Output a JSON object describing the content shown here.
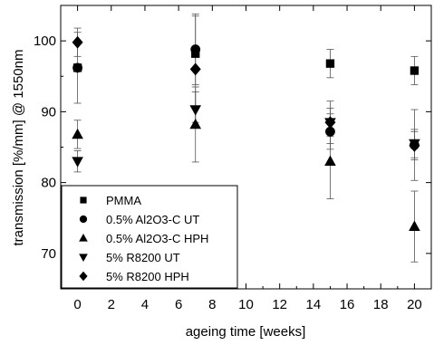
{
  "chart_data": {
    "type": "scatter",
    "xlabel": "ageing time [weeks]",
    "ylabel": "transmission [%/mm] @ 1550nm",
    "xlim": [
      -1,
      21
    ],
    "ylim": [
      65,
      105
    ],
    "xticks": [
      0,
      2,
      4,
      6,
      8,
      10,
      12,
      14,
      16,
      18,
      20
    ],
    "yticks": [
      70,
      80,
      90,
      100
    ],
    "legend_position": "bottom-left",
    "series": [
      {
        "name": "PMMA",
        "marker": "square",
        "color": "#000000",
        "x": [
          0,
          7,
          15,
          20
        ],
        "y": [
          96.2,
          98.2,
          96.8,
          95.8
        ],
        "error": [
          null,
          null,
          2.0,
          2.0
        ]
      },
      {
        "name": "0.5% Al2O3-C UT",
        "marker": "circle",
        "color": "#000000",
        "x": [
          0,
          7,
          15,
          20
        ],
        "y": [
          96.2,
          98.8,
          87.2,
          85.3
        ],
        "error": [
          5.0,
          5.0,
          2.5,
          5.0
        ]
      },
      {
        "name": "0.5% Al2O3-C HPH",
        "marker": "triangle-up",
        "color": "#000000",
        "x": [
          0,
          7,
          15,
          20
        ],
        "y": [
          86.8,
          88.2,
          83.0,
          73.8
        ],
        "error": [
          2.0,
          5.3,
          5.3,
          5.0
        ]
      },
      {
        "name": "5% R8200 UT",
        "marker": "triangle-down",
        "color": "#000000",
        "x": [
          0,
          7,
          15,
          20
        ],
        "y": [
          83.0,
          90.3,
          88.5,
          85.5
        ],
        "error": [
          1.5,
          2.5,
          2.0,
          2.0
        ]
      },
      {
        "name": "5% R8200 HPH",
        "marker": "diamond",
        "color": "#000000",
        "x": [
          0,
          7,
          15,
          20
        ],
        "y": [
          99.8,
          96.0,
          88.5,
          85.2
        ],
        "error": [
          2.0,
          7.5,
          3.0,
          2.0
        ]
      }
    ]
  }
}
